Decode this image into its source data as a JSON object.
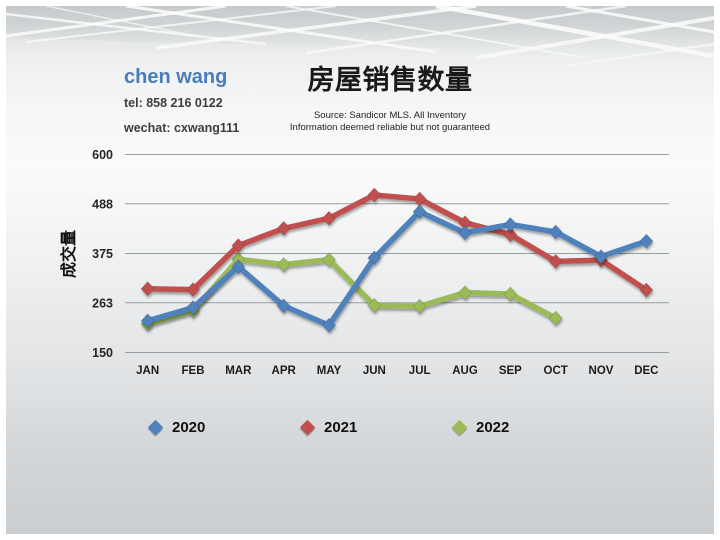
{
  "header": {
    "agent_name": "chen wang",
    "tel": "tel: 858 216 0122",
    "wechat": "wechat: cxwang111"
  },
  "chart": {
    "title": "房屋销售数量",
    "source_line1": "Source: Sandicor MLS. All Inventory",
    "source_line2": "Information deemed reliable but not guaranteed"
  },
  "chart_data": {
    "type": "line",
    "title": "房屋销售数量",
    "ylabel": "成交量",
    "xlabel": "",
    "categories": [
      "JAN",
      "FEB",
      "MAR",
      "APR",
      "MAY",
      "JUN",
      "JUL",
      "AUG",
      "SEP",
      "OCT",
      "NOV",
      "DEC"
    ],
    "ylim": [
      150,
      600
    ],
    "y_ticks": [
      150,
      263,
      375,
      488,
      600
    ],
    "grid": true,
    "marker": "diamond",
    "legend_position": "bottom",
    "series": [
      {
        "name": "2020",
        "color": "#4F81BD",
        "values": [
          222,
          252,
          345,
          256,
          212,
          365,
          470,
          422,
          441,
          424,
          368,
          403
        ]
      },
      {
        "name": "2021",
        "color": "#C0504D",
        "values": [
          295,
          293,
          393,
          432,
          455,
          508,
          499,
          445,
          418,
          357,
          360,
          292
        ]
      },
      {
        "name": "2022",
        "color": "#9BBB59",
        "values": [
          215,
          245,
          362,
          350,
          361,
          257,
          255,
          286,
          283,
          228,
          null,
          null
        ]
      }
    ]
  },
  "colors": {
    "accent_name_blue": "#4a7cb8",
    "series_2020": "#4F81BD",
    "series_2021": "#C0504D",
    "series_2022": "#9BBB59",
    "gridline": "#989da0",
    "slide_gray": "#cbced0"
  }
}
